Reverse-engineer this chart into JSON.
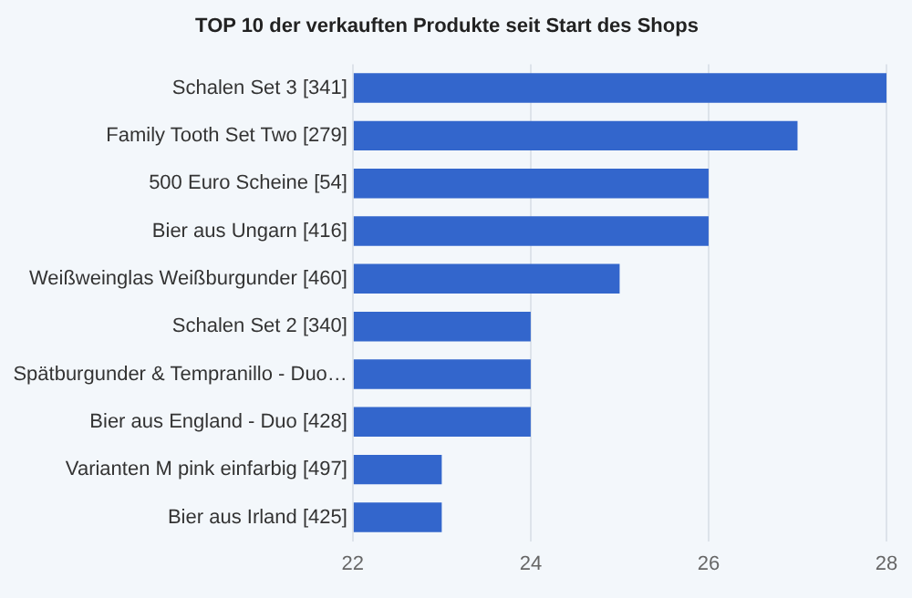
{
  "chart_data": {
    "type": "bar",
    "orientation": "horizontal",
    "title": "TOP 10 der verkauften Produkte seit Start des Shops",
    "categories": [
      "Schalen Set 3 [341]",
      "Family Tooth Set Two [279]",
      "500 Euro Scheine [54]",
      "Bier aus Ungarn [416]",
      "Weißweinglas Weißburgunder [460]",
      "Schalen Set 2 [340]",
      "Spätburgunder & Tempranillo - Duo…",
      "Bier aus England - Duo [428]",
      "Varianten M pink einfarbig [497]",
      "Bier aus Irland [425]"
    ],
    "values": [
      28,
      27,
      26,
      26,
      25,
      24,
      24,
      24,
      23,
      23
    ],
    "color": "#3366cc",
    "xlim": [
      22,
      28
    ],
    "xticks": [
      22,
      24,
      26,
      28
    ],
    "grid": "x",
    "legend": false
  }
}
